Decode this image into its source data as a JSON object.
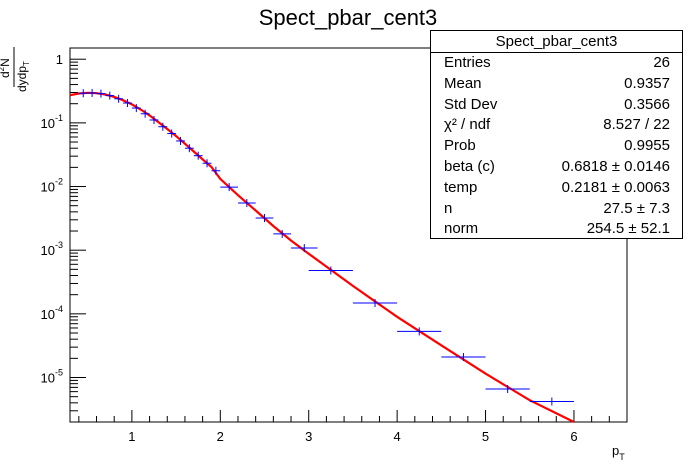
{
  "chart_data": {
    "type": "scatter",
    "title": "Spect_pbar_cent3",
    "xlabel_base": "p",
    "xlabel_sub": "T",
    "ylabel": {
      "numerator_base": "d",
      "numerator_sup": "2",
      "numerator_rest": "N",
      "denominator_base": "dydp",
      "denominator_sub": "T"
    },
    "x_range": [
      0.3,
      6.6
    ],
    "y_range": [
      2e-06,
      1.5
    ],
    "y_scale": "log",
    "x_ticks": [
      "1",
      "2",
      "3",
      "4",
      "5",
      "6"
    ],
    "y_ticks": [
      {
        "base": "1",
        "exp": ""
      },
      {
        "base": "10",
        "exp": "-1"
      },
      {
        "base": "10",
        "exp": "-2"
      },
      {
        "base": "10",
        "exp": "-3"
      },
      {
        "base": "10",
        "exp": "-4"
      },
      {
        "base": "10",
        "exp": "-5"
      }
    ],
    "data_points": [
      {
        "x": 0.45,
        "xerr": 0.05,
        "y": 0.292
      },
      {
        "x": 0.55,
        "xerr": 0.05,
        "y": 0.295
      },
      {
        "x": 0.65,
        "xerr": 0.05,
        "y": 0.288
      },
      {
        "x": 0.75,
        "xerr": 0.05,
        "y": 0.268
      },
      {
        "x": 0.85,
        "xerr": 0.05,
        "y": 0.239
      },
      {
        "x": 0.95,
        "xerr": 0.05,
        "y": 0.205
      },
      {
        "x": 1.05,
        "xerr": 0.05,
        "y": 0.171
      },
      {
        "x": 1.15,
        "xerr": 0.05,
        "y": 0.139
      },
      {
        "x": 1.25,
        "xerr": 0.05,
        "y": 0.111
      },
      {
        "x": 1.35,
        "xerr": 0.05,
        "y": 0.087
      },
      {
        "x": 1.45,
        "xerr": 0.05,
        "y": 0.068
      },
      {
        "x": 1.55,
        "xerr": 0.05,
        "y": 0.052
      },
      {
        "x": 1.65,
        "xerr": 0.05,
        "y": 0.04
      },
      {
        "x": 1.75,
        "xerr": 0.05,
        "y": 0.0305
      },
      {
        "x": 1.85,
        "xerr": 0.05,
        "y": 0.0232
      },
      {
        "x": 1.95,
        "xerr": 0.05,
        "y": 0.0177
      },
      {
        "x": 2.1,
        "xerr": 0.1,
        "y": 0.0098
      },
      {
        "x": 2.3,
        "xerr": 0.1,
        "y": 0.0055
      },
      {
        "x": 2.5,
        "xerr": 0.1,
        "y": 0.0032
      },
      {
        "x": 2.7,
        "xerr": 0.1,
        "y": 0.0018
      },
      {
        "x": 2.95,
        "xerr": 0.15,
        "y": 0.00108
      },
      {
        "x": 3.25,
        "xerr": 0.25,
        "y": 0.00048
      },
      {
        "x": 3.75,
        "xerr": 0.25,
        "y": 0.000148
      },
      {
        "x": 4.25,
        "xerr": 0.25,
        "y": 5.3e-05
      },
      {
        "x": 4.75,
        "xerr": 0.25,
        "y": 2.1e-05
      },
      {
        "x": 5.25,
        "xerr": 0.25,
        "y": 6.6e-06
      },
      {
        "x": 5.75,
        "xerr": 0.25,
        "y": 4.2e-06
      }
    ],
    "fit_curve": [
      {
        "x": 0.3,
        "y": 0.272
      },
      {
        "x": 0.4,
        "y": 0.289
      },
      {
        "x": 0.5,
        "y": 0.297
      },
      {
        "x": 0.6,
        "y": 0.292
      },
      {
        "x": 0.7,
        "y": 0.279
      },
      {
        "x": 0.8,
        "y": 0.256
      },
      {
        "x": 0.9,
        "y": 0.227
      },
      {
        "x": 1.0,
        "y": 0.195
      },
      {
        "x": 1.1,
        "y": 0.162
      },
      {
        "x": 1.2,
        "y": 0.131
      },
      {
        "x": 1.3,
        "y": 0.103
      },
      {
        "x": 1.4,
        "y": 0.08
      },
      {
        "x": 1.5,
        "y": 0.062
      },
      {
        "x": 1.6,
        "y": 0.047
      },
      {
        "x": 1.7,
        "y": 0.0355
      },
      {
        "x": 1.8,
        "y": 0.0268
      },
      {
        "x": 1.9,
        "y": 0.0203
      },
      {
        "x": 2.0,
        "y": 0.0132
      },
      {
        "x": 2.2,
        "y": 0.0073
      },
      {
        "x": 2.4,
        "y": 0.0042
      },
      {
        "x": 2.6,
        "y": 0.0024
      },
      {
        "x": 2.8,
        "y": 0.00142
      },
      {
        "x": 3.0,
        "y": 0.00088
      },
      {
        "x": 3.5,
        "y": 0.000275
      },
      {
        "x": 4.0,
        "y": 9e-05
      },
      {
        "x": 4.5,
        "y": 3.2e-05
      },
      {
        "x": 5.0,
        "y": 1.15e-05
      },
      {
        "x": 5.5,
        "y": 4.4e-06
      },
      {
        "x": 6.0,
        "y": 2e-06
      }
    ],
    "colors": {
      "data": "#0000ff",
      "fit": "#ff0000",
      "axis": "#000000"
    },
    "legend_placement": "top-right"
  },
  "stats": {
    "title": "Spect_pbar_cent3",
    "rows": [
      {
        "label": "Entries",
        "value": "26"
      },
      {
        "label": "Mean",
        "value": "0.9357"
      },
      {
        "label": "Std Dev",
        "value": "0.3566"
      },
      {
        "label": "χ² / ndf",
        "value": "8.527 / 22"
      },
      {
        "label": "Prob",
        "value": "0.9955"
      },
      {
        "label": "beta (c)",
        "value": "0.6818  ± 0.0146"
      },
      {
        "label": "temp",
        "value": "0.2181  ± 0.0063"
      },
      {
        "label": "n",
        "value": "27.5  ± 7.3"
      },
      {
        "label": "norm",
        "value": "254.5  ± 52.1"
      }
    ]
  }
}
